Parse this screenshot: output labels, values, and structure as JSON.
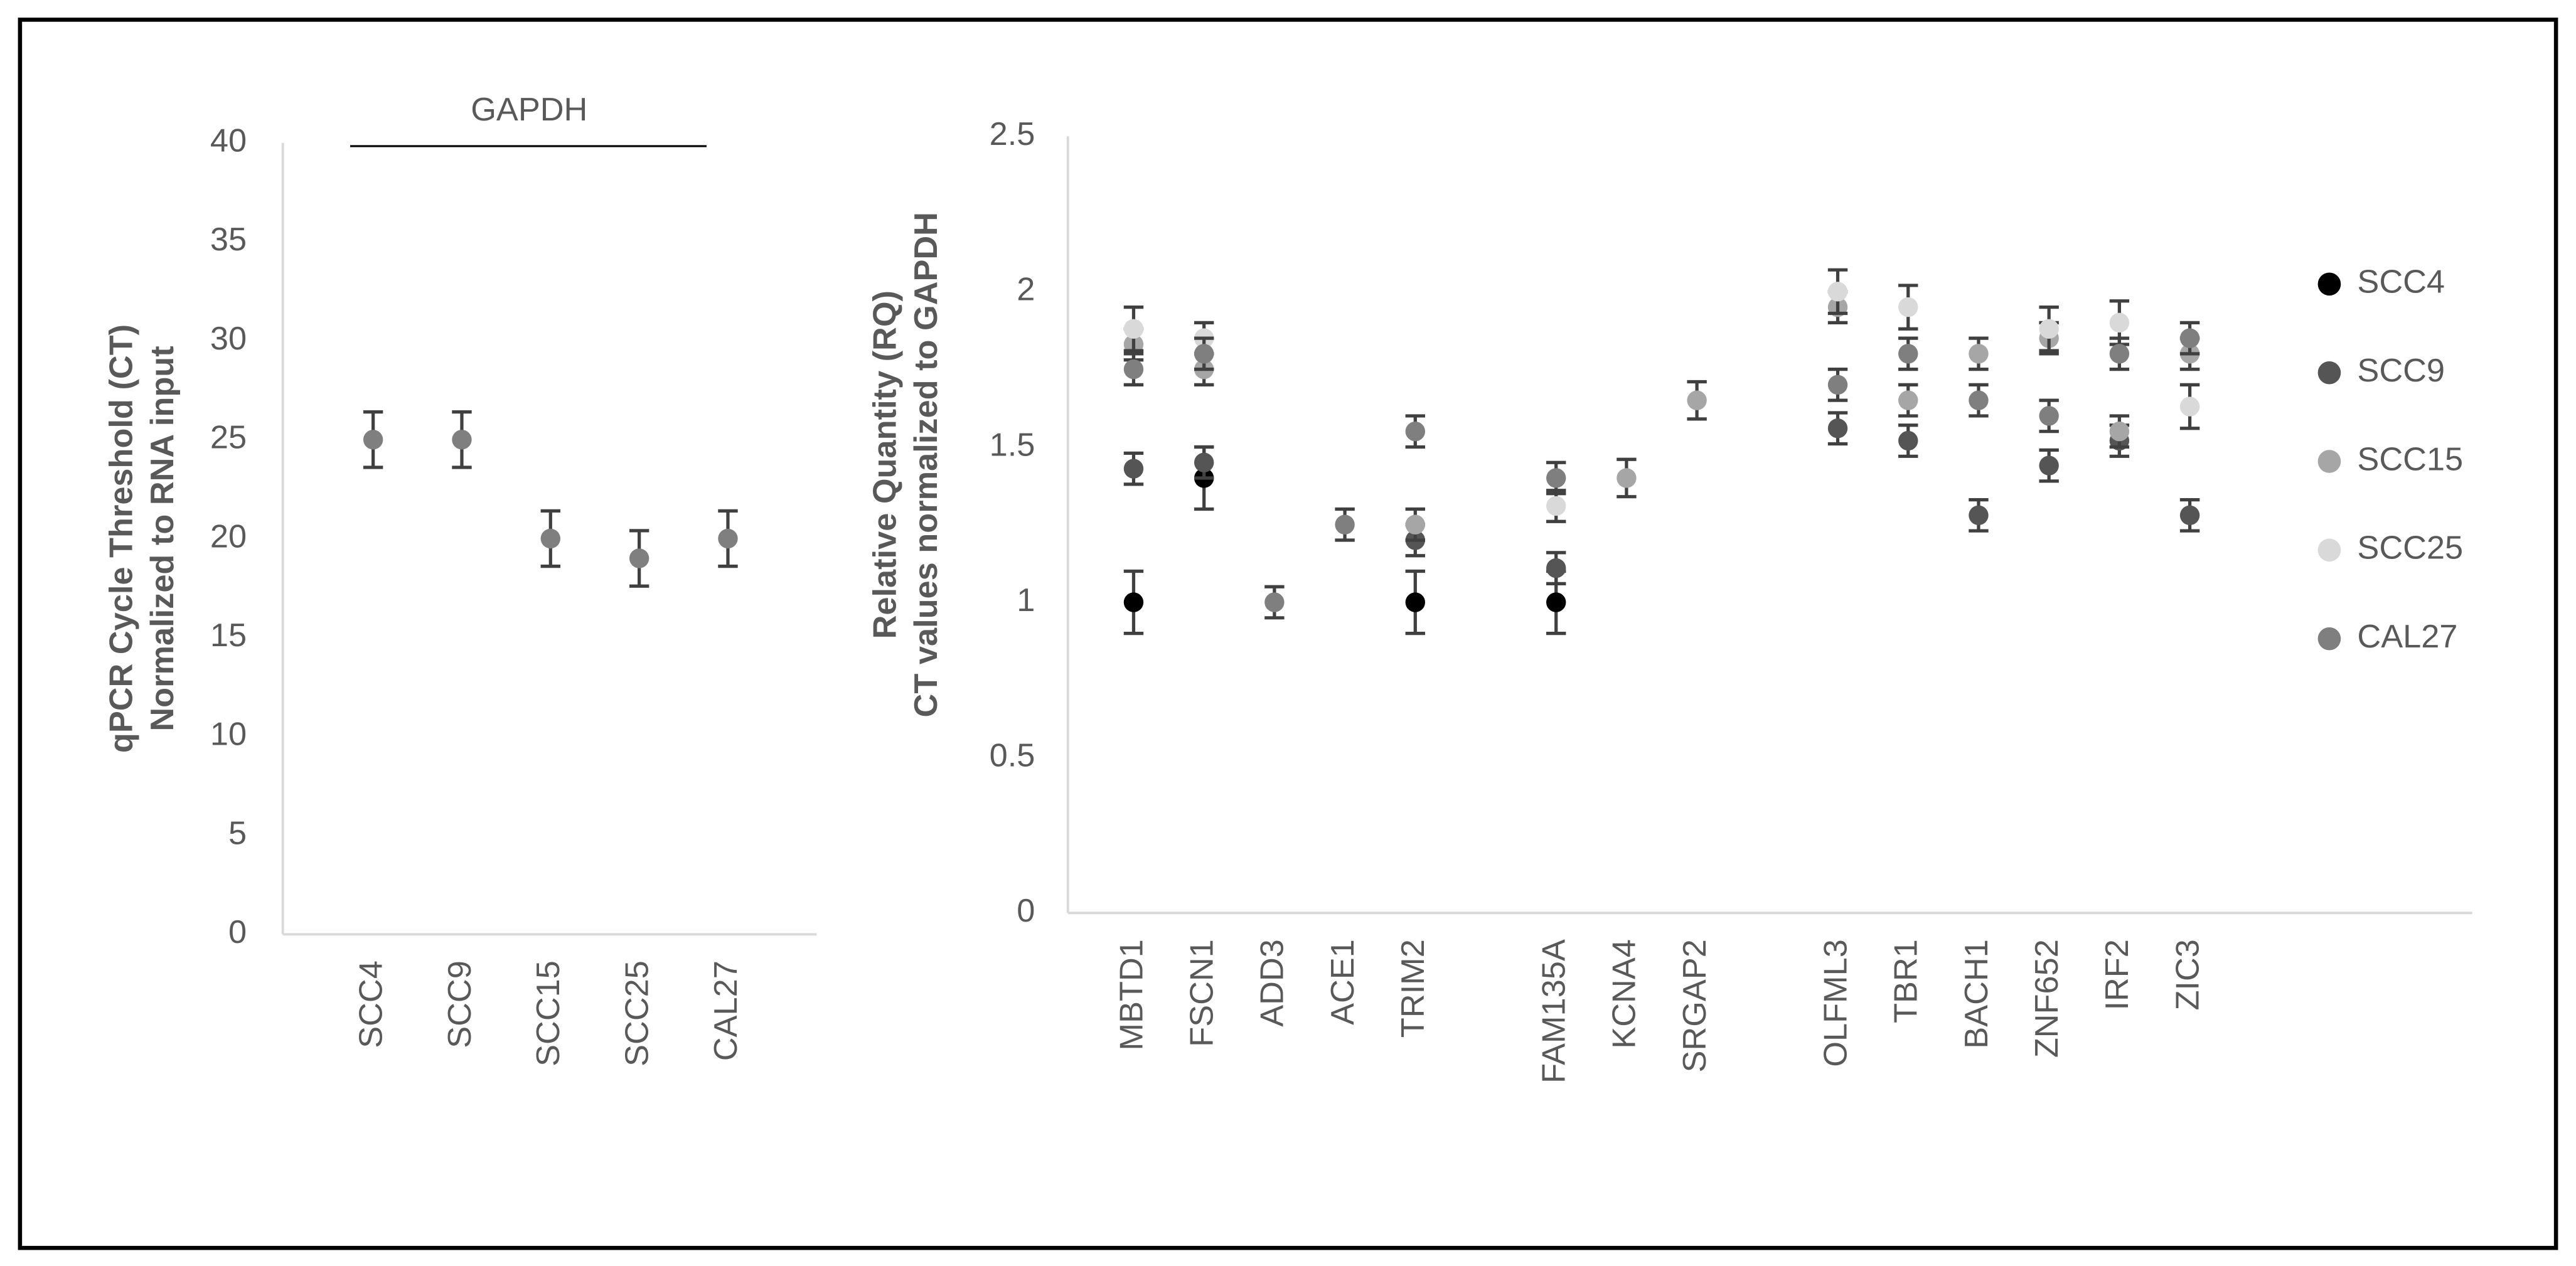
{
  "chart_data": [
    {
      "type": "errorbar",
      "ylabel": [
        "qPCR Cycle Threshold (CT)",
        "Normalized to RNA input"
      ],
      "annotation": "GAPDH",
      "categories": [
        "SCC4",
        "SCC9",
        "SCC15",
        "SCC25",
        "CAL27"
      ],
      "values": [
        25,
        25,
        20,
        19,
        20
      ],
      "errors": [
        1.4,
        1.4,
        1.4,
        1.4,
        1.4
      ],
      "color": "#7f7f7f",
      "ylim": [
        0,
        40
      ],
      "yticks": [
        0,
        5,
        10,
        15,
        20,
        25,
        30,
        35,
        40
      ]
    },
    {
      "type": "errorbar",
      "ylabel": [
        "Relative Quantity (RQ)",
        "CT values normalized to GAPDH"
      ],
      "categories": [
        "MBTD1",
        "FSCN1",
        "ADD3",
        "ACE1",
        "TRIM2",
        null,
        "FAM135A",
        "KCNA4",
        "SRGAP2",
        null,
        "OLFML3",
        "TBR1",
        "BACH1",
        "ZNF652",
        "IRF2",
        "ZIC3"
      ],
      "series": [
        {
          "name": "SCC4",
          "color": "#000000",
          "values": [
            1.0,
            1.4,
            null,
            null,
            1.0,
            null,
            1.0,
            null,
            null,
            null,
            null,
            null,
            null,
            null,
            null,
            null
          ],
          "errors": [
            0.1,
            0.1,
            null,
            null,
            0.1,
            null,
            0.1,
            null,
            null,
            null,
            null,
            null,
            null,
            null,
            null,
            null
          ]
        },
        {
          "name": "SCC9",
          "color": "#555555",
          "values": [
            1.43,
            1.45,
            null,
            null,
            1.2,
            null,
            1.11,
            null,
            null,
            null,
            1.56,
            1.52,
            1.28,
            1.44,
            1.52,
            1.28
          ],
          "errors": [
            0.05,
            0.05,
            null,
            null,
            0.05,
            null,
            0.05,
            null,
            null,
            null,
            0.05,
            0.05,
            0.05,
            0.05,
            0.05,
            0.05
          ]
        },
        {
          "name": "SCC15",
          "color": "#a6a6a6",
          "values": [
            1.83,
            1.75,
            null,
            null,
            1.25,
            null,
            null,
            1.4,
            1.65,
            null,
            1.95,
            1.65,
            1.8,
            1.85,
            1.55,
            1.8
          ],
          "errors": [
            0.05,
            0.05,
            null,
            null,
            0.05,
            null,
            null,
            0.06,
            0.06,
            null,
            0.05,
            0.05,
            0.05,
            0.05,
            0.05,
            0.05
          ]
        },
        {
          "name": "SCC25",
          "color": "#d9d9d9",
          "values": [
            1.88,
            1.85,
            null,
            null,
            null,
            null,
            1.31,
            null,
            null,
            null,
            2.0,
            1.95,
            null,
            1.88,
            1.9,
            1.63
          ],
          "errors": [
            0.07,
            0.05,
            null,
            null,
            null,
            null,
            0.05,
            null,
            null,
            null,
            0.07,
            0.07,
            null,
            0.07,
            0.07,
            0.07
          ]
        },
        {
          "name": "CAL27",
          "color": "#7f7f7f",
          "values": [
            1.75,
            1.8,
            1.0,
            1.25,
            1.55,
            null,
            1.4,
            null,
            null,
            null,
            1.7,
            1.8,
            1.65,
            1.6,
            1.8,
            1.85
          ],
          "errors": [
            0.05,
            0.05,
            0.05,
            0.05,
            0.05,
            null,
            0.05,
            null,
            null,
            null,
            0.05,
            0.05,
            0.05,
            0.05,
            0.05,
            0.05
          ]
        }
      ],
      "ylim": [
        0,
        2.5
      ],
      "yticks": [
        0,
        0.5,
        1,
        1.5,
        2,
        2.5
      ]
    }
  ]
}
